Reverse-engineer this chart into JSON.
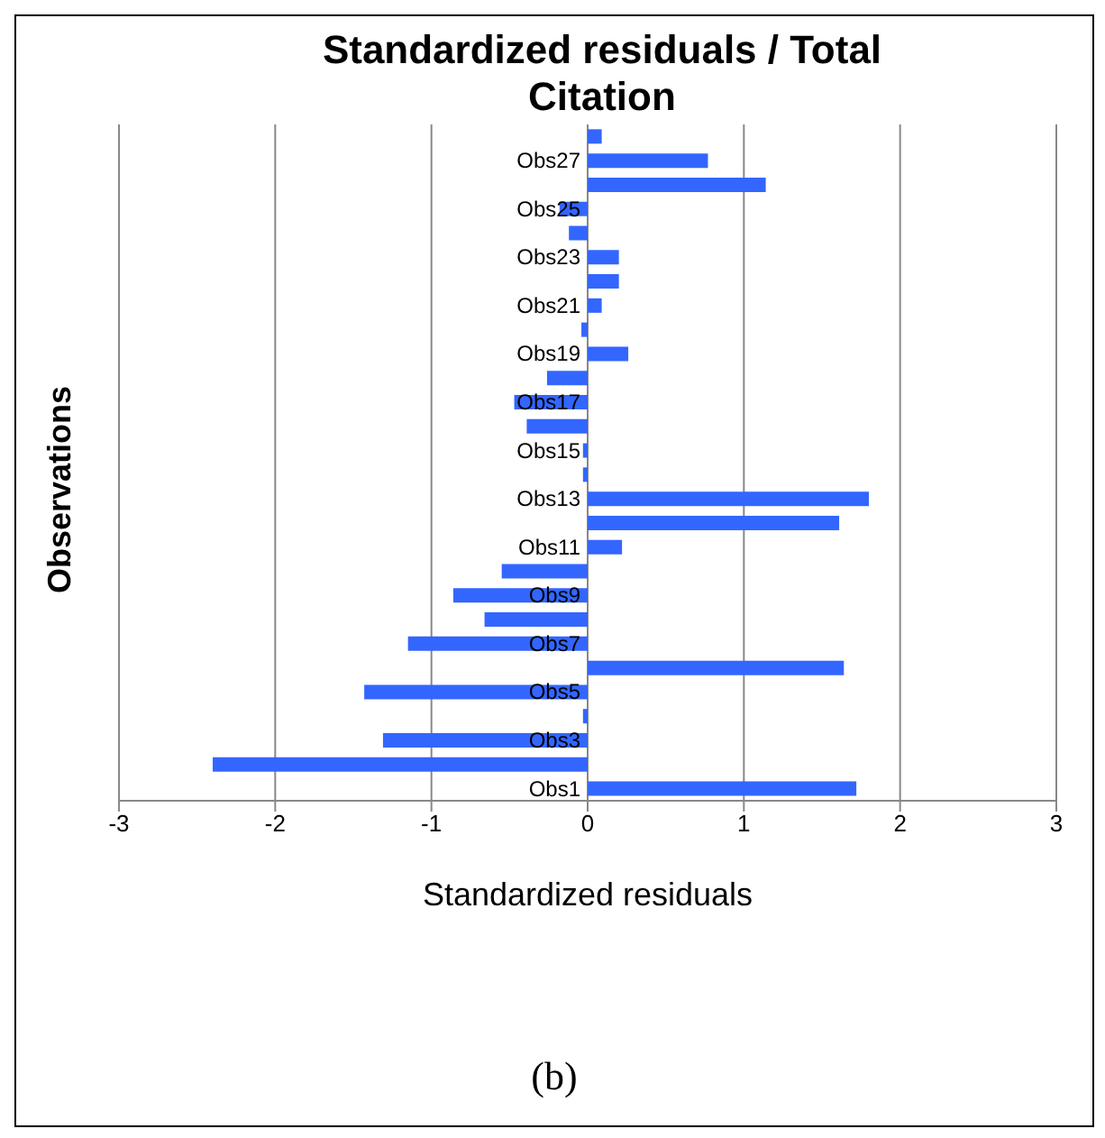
{
  "chart_data": {
    "type": "bar",
    "orientation": "horizontal",
    "title": "Standardized residuals / Total Citation",
    "xlabel": "Standardized residuals",
    "ylabel": "Observations",
    "annotations": [
      "(b)"
    ],
    "categories": [
      null,
      "Obs27",
      null,
      "Obs25",
      null,
      "Obs23",
      null,
      "Obs21",
      null,
      "Obs19",
      null,
      "Obs17",
      null,
      "Obs15",
      null,
      "Obs13",
      null,
      "Obs11",
      null,
      "Obs9",
      null,
      "Obs7",
      null,
      "Obs5",
      null,
      "Obs3",
      null,
      "Obs1"
    ],
    "values": [
      0.09,
      0.77,
      1.14,
      -0.18,
      -0.12,
      0.2,
      0.2,
      0.09,
      -0.04,
      0.26,
      -0.26,
      -0.47,
      -0.39,
      -0.03,
      -0.03,
      1.8,
      1.61,
      0.22,
      -0.55,
      -0.86,
      -0.66,
      -1.15,
      1.64,
      -1.43,
      -0.03,
      -1.31,
      -2.4,
      1.72
    ],
    "color": "#3366ff",
    "xlim": [
      -3,
      3
    ],
    "xticks": [
      -3,
      -2,
      -1,
      0,
      1,
      2,
      3
    ],
    "grid": "x",
    "legend": false
  }
}
